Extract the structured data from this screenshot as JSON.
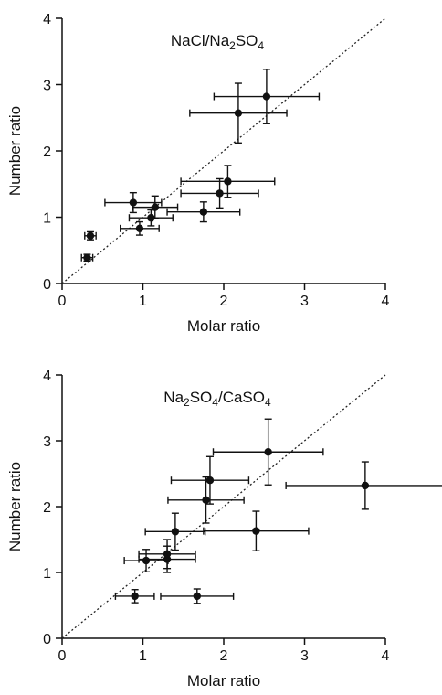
{
  "chart_data": [
    {
      "type": "scatter",
      "title_parts": [
        {
          "text": "NaCl/Na",
          "sub": false
        },
        {
          "text": "2",
          "sub": true
        },
        {
          "text": "SO",
          "sub": false
        },
        {
          "text": "4",
          "sub": true
        }
      ],
      "xlabel": "Molar ratio",
      "ylabel": "Number ratio",
      "xlim": [
        0,
        4
      ],
      "ylim": [
        0,
        4
      ],
      "xticks": [
        "0",
        "1",
        "2",
        "3",
        "4"
      ],
      "yticks": [
        "0",
        "1",
        "2",
        "3",
        "4"
      ],
      "reference_line": "y = x (dotted)",
      "points": [
        {
          "x": 2.53,
          "y": 2.82,
          "xerr": 0.65,
          "yerr": 0.41
        },
        {
          "x": 2.18,
          "y": 2.57,
          "xerr": 0.6,
          "yerr": 0.45
        },
        {
          "x": 2.05,
          "y": 1.54,
          "xerr": 0.58,
          "yerr": 0.24
        },
        {
          "x": 1.95,
          "y": 1.36,
          "xerr": 0.48,
          "yerr": 0.22
        },
        {
          "x": 1.75,
          "y": 1.08,
          "xerr": 0.45,
          "yerr": 0.15
        },
        {
          "x": 0.88,
          "y": 1.22,
          "xerr": 0.35,
          "yerr": 0.15
        },
        {
          "x": 1.15,
          "y": 1.15,
          "xerr": 0.28,
          "yerr": 0.17
        },
        {
          "x": 1.1,
          "y": 0.99,
          "xerr": 0.27,
          "yerr": 0.12
        },
        {
          "x": 0.96,
          "y": 0.83,
          "xerr": 0.24,
          "yerr": 0.1
        },
        {
          "x": 0.35,
          "y": 0.72,
          "xerr": 0.07,
          "yerr": 0.06
        },
        {
          "x": 0.31,
          "y": 0.39,
          "xerr": 0.07,
          "yerr": 0.05
        }
      ]
    },
    {
      "type": "scatter",
      "title_parts": [
        {
          "text": "Na",
          "sub": false
        },
        {
          "text": "2",
          "sub": true
        },
        {
          "text": "SO",
          "sub": false
        },
        {
          "text": "4",
          "sub": true
        },
        {
          "text": "/CaSO",
          "sub": false
        },
        {
          "text": "4",
          "sub": true
        }
      ],
      "xlabel": "Molar ratio",
      "ylabel": "Number ratio",
      "xlim": [
        0,
        4
      ],
      "ylim": [
        0,
        4
      ],
      "xticks": [
        "0",
        "1",
        "2",
        "3",
        "4"
      ],
      "yticks": [
        "0",
        "1",
        "2",
        "3",
        "4"
      ],
      "reference_line": "y = x (dotted)",
      "points": [
        {
          "x": 2.55,
          "y": 2.83,
          "xerr": 0.68,
          "yerr": 0.5
        },
        {
          "x": 1.83,
          "y": 2.4,
          "xerr": 0.48,
          "yerr": 0.36
        },
        {
          "x": 1.78,
          "y": 2.1,
          "xerr": 0.47,
          "yerr": 0.35
        },
        {
          "x": 3.75,
          "y": 2.32,
          "xerr": 0.98,
          "yerr": 0.36
        },
        {
          "x": 1.4,
          "y": 1.62,
          "xerr": 0.37,
          "yerr": 0.28
        },
        {
          "x": 2.4,
          "y": 1.63,
          "xerr": 0.65,
          "yerr": 0.3
        },
        {
          "x": 1.3,
          "y": 1.28,
          "xerr": 0.35,
          "yerr": 0.22
        },
        {
          "x": 1.3,
          "y": 1.2,
          "xerr": 0.35,
          "yerr": 0.2
        },
        {
          "x": 1.04,
          "y": 1.18,
          "xerr": 0.27,
          "yerr": 0.17
        },
        {
          "x": 0.9,
          "y": 0.64,
          "xerr": 0.24,
          "yerr": 0.1
        },
        {
          "x": 1.67,
          "y": 0.64,
          "xerr": 0.45,
          "yerr": 0.11
        }
      ]
    }
  ]
}
